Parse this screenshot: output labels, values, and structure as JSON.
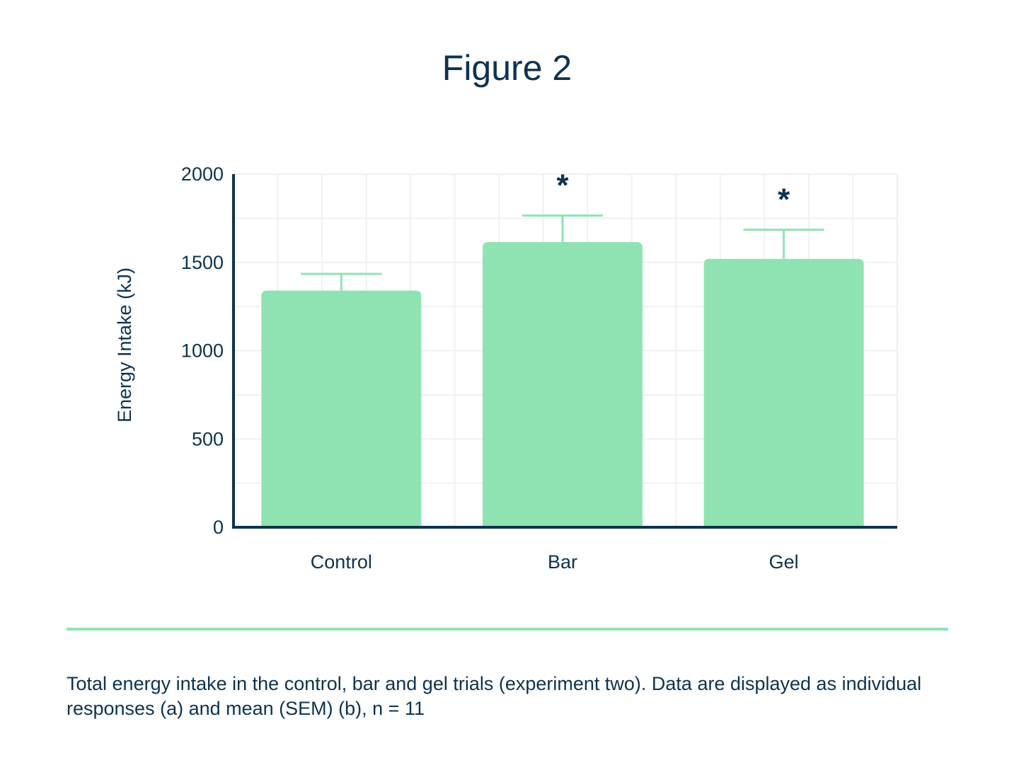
{
  "figure": {
    "title": "Figure 2",
    "caption": "Total energy intake in the control, bar and gel trials (experiment two). Data are displayed as individual responses (a) and mean (SEM) (b), n = 11"
  },
  "colors": {
    "bar_fill": "#8fe3b3",
    "error_bar": "#8fe3b3",
    "axis": "#0d3350",
    "grid": "#eef1f3",
    "text": "#0d3350"
  },
  "chart_data": {
    "type": "bar",
    "title": "Figure 2",
    "categories": [
      "Control",
      "Bar",
      "Gel"
    ],
    "values": [
      1340,
      1615,
      1520
    ],
    "errors": [
      95,
      150,
      165
    ],
    "significance": [
      "",
      "*",
      "*"
    ],
    "xlabel": "",
    "ylabel": "Energy Intake (kJ)",
    "ylim": [
      0,
      2000
    ],
    "yticks": [
      0,
      500,
      1000,
      1500,
      2000
    ],
    "grid": true
  }
}
